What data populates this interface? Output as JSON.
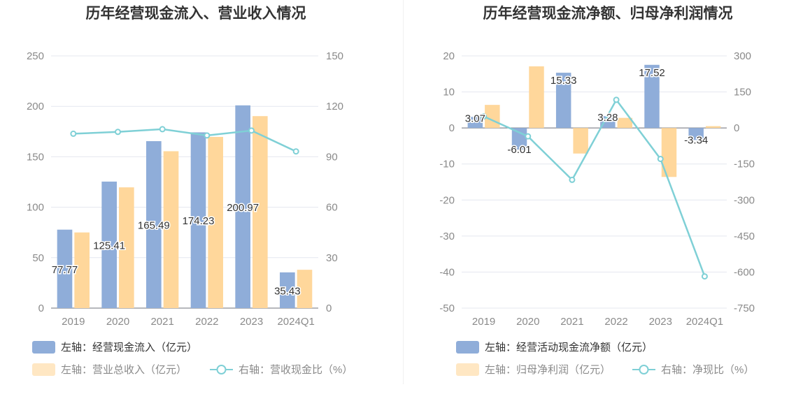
{
  "colors": {
    "bar_primary": "#8fadd9",
    "bar_secondary": "#ffd79b",
    "line": "#7fd0d6",
    "grid": "#e4e7ef",
    "axis_text": "#8a8a8a"
  },
  "chart_data": [
    {
      "type": "bar",
      "title": "历年经营现金流入、营业收入情况",
      "categories": [
        "2019",
        "2020",
        "2021",
        "2022",
        "2023",
        "2024Q1"
      ],
      "left_axis": {
        "ylim": [
          0,
          250
        ],
        "ticks": [
          "0",
          "50",
          "100",
          "150",
          "200",
          "250"
        ]
      },
      "right_axis": {
        "ylim": [
          0,
          150
        ],
        "ticks": [
          "0",
          "30",
          "60",
          "90",
          "120",
          "150"
        ]
      },
      "series": [
        {
          "name": "左轴：经营现金流入（亿元）",
          "kind": "bar",
          "axis": "left",
          "color": "#8fadd9",
          "values": [
            77.77,
            125.41,
            165.49,
            174.23,
            200.97,
            35.43
          ],
          "labels": [
            "77.77",
            "125.41",
            "165.49",
            "174.23",
            "200.97",
            "35.43"
          ]
        },
        {
          "name": "左轴：营业总收入（亿元）",
          "kind": "bar",
          "axis": "left",
          "color": "#ffd79b",
          "values": [
            75.0,
            119.7,
            155.5,
            169.7,
            190.3,
            38.0
          ]
        },
        {
          "name": "右轴：营收现金比（%）",
          "kind": "line",
          "axis": "right",
          "color": "#7fd0d6",
          "values": [
            103.7,
            104.8,
            106.4,
            102.7,
            105.6,
            93.2
          ]
        }
      ],
      "legend_position": "bottom-left"
    },
    {
      "type": "bar",
      "title": "历年经营现金流净额、归母净利润情况",
      "categories": [
        "2019",
        "2020",
        "2021",
        "2022",
        "2023",
        "2024Q1"
      ],
      "left_axis": {
        "ylim": [
          -50,
          20
        ],
        "ticks": [
          "-50",
          "-40",
          "-30",
          "-20",
          "-10",
          "0",
          "10",
          "20"
        ]
      },
      "right_axis": {
        "ylim": [
          -750,
          300
        ],
        "ticks": [
          "-750",
          "-600",
          "-450",
          "-300",
          "-150",
          "0",
          "150",
          "300"
        ]
      },
      "series": [
        {
          "name": "左轴：经营活动现金流净额（亿元）",
          "kind": "bar",
          "axis": "left",
          "color": "#8fadd9",
          "values": [
            3.07,
            -6.01,
            15.33,
            3.28,
            17.52,
            -3.34
          ],
          "labels": [
            "3.07",
            "-6.01",
            "15.33",
            "3.28",
            "17.52",
            "-3.34"
          ]
        },
        {
          "name": "左轴：归母净利润（亿元）",
          "kind": "bar",
          "axis": "left",
          "color": "#ffd79b",
          "values": [
            6.4,
            17.1,
            -7.1,
            2.8,
            -13.6,
            0.5
          ]
        },
        {
          "name": "右轴：净现比（%）",
          "kind": "line",
          "axis": "right",
          "color": "#7fd0d6",
          "values": [
            48,
            -35,
            -216,
            117,
            -129,
            -618
          ]
        }
      ],
      "legend_position": "bottom-left"
    }
  ]
}
